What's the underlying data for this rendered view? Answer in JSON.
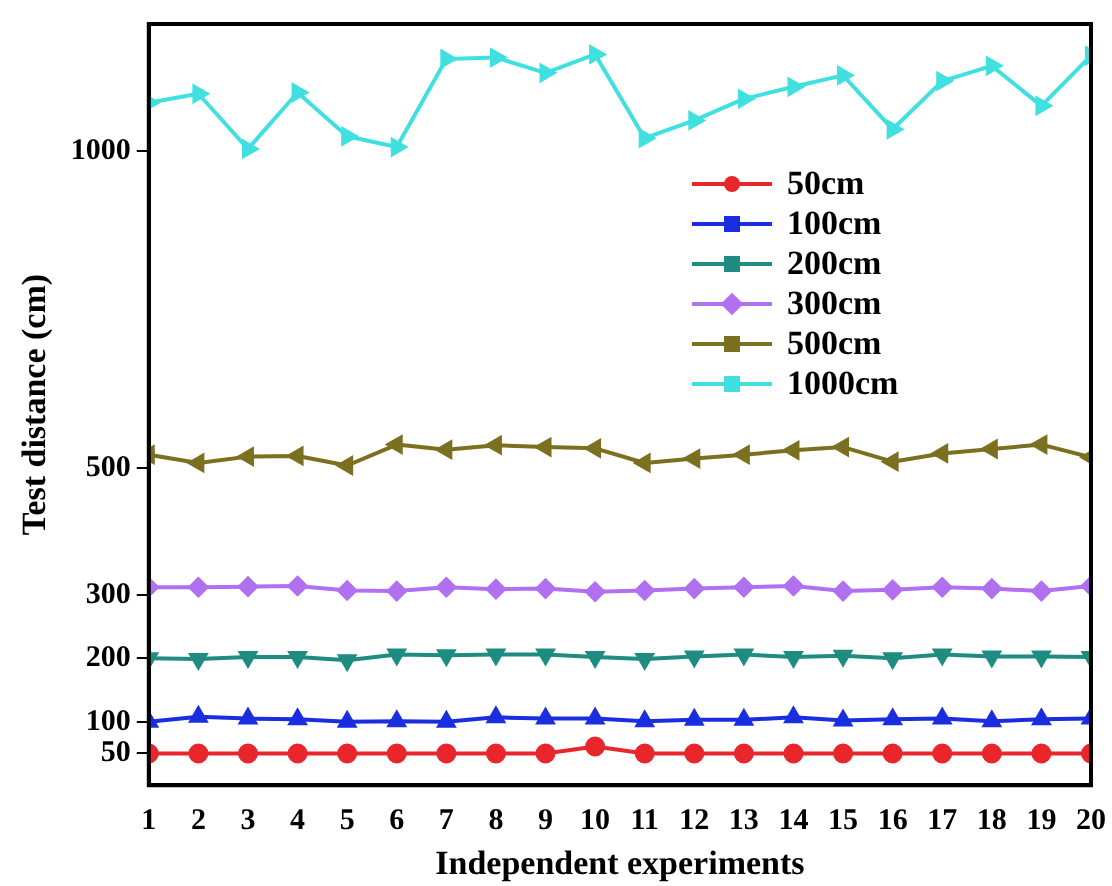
{
  "chart_data": {
    "type": "line",
    "xlabel": "Independent experiments",
    "ylabel": "Test distance (cm)",
    "x": [
      1,
      2,
      3,
      4,
      5,
      6,
      7,
      8,
      9,
      10,
      11,
      12,
      13,
      14,
      15,
      16,
      17,
      18,
      19,
      20
    ],
    "xlim": [
      1,
      20
    ],
    "xticks": [
      1,
      2,
      3,
      4,
      5,
      6,
      7,
      8,
      9,
      10,
      11,
      12,
      13,
      14,
      15,
      16,
      17,
      18,
      19,
      20
    ],
    "ylim": [
      0,
      1200
    ],
    "yticks": [
      50,
      100,
      200,
      300,
      500,
      1000
    ],
    "grid": false,
    "legend": "right",
    "line_style": "solid",
    "series": [
      {
        "name": "50cm",
        "color": "#e8262b",
        "marker": "circle",
        "values": [
          50,
          50,
          50,
          50,
          50,
          50,
          50,
          50,
          50,
          61,
          50,
          50,
          50,
          50,
          50,
          50,
          50,
          50,
          50,
          50
        ]
      },
      {
        "name": "100cm",
        "color": "#1a2ee0",
        "marker": "triangle",
        "values": [
          100,
          108,
          105,
          104,
          100,
          101,
          100,
          107,
          105,
          105,
          101,
          103,
          103,
          107,
          102,
          104,
          105,
          101,
          104,
          105
        ]
      },
      {
        "name": "200cm",
        "color": "#1e8c80",
        "marker": "triangle",
        "values": [
          200,
          199,
          202,
          202,
          197,
          206,
          205,
          206,
          206,
          202,
          199,
          203,
          206,
          202,
          204,
          200,
          206,
          203,
          203,
          202
        ]
      },
      {
        "name": "300cm",
        "color": "#b070f0",
        "marker": "diamond",
        "values": [
          312,
          312,
          313,
          314,
          307,
          306,
          312,
          309,
          310,
          305,
          307,
          310,
          312,
          314,
          306,
          308,
          312,
          310,
          306,
          314
        ]
      },
      {
        "name": "500cm",
        "color": "#7a7020",
        "marker": "triangle",
        "values": [
          521,
          508,
          518,
          519,
          504,
          537,
          529,
          536,
          533,
          531,
          508,
          515,
          521,
          528,
          533,
          510,
          523,
          530,
          537,
          517
        ]
      },
      {
        "name": "1000cm",
        "color": "#40e0e0",
        "marker": "triangle",
        "values": [
          1076,
          1090,
          1003,
          1092,
          1023,
          1006,
          1145,
          1147,
          1123,
          1152,
          1020,
          1048,
          1082,
          1101,
          1119,
          1034,
          1110,
          1134,
          1071,
          1150
        ]
      }
    ]
  }
}
